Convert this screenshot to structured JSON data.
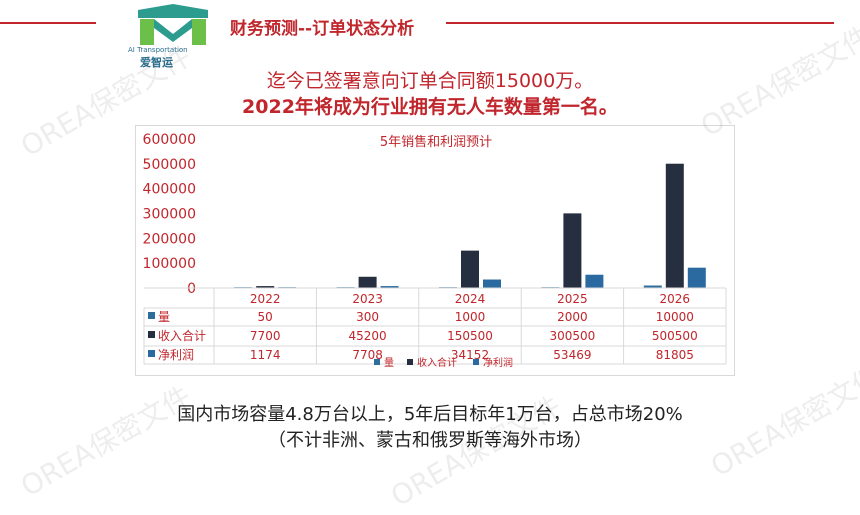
{
  "header": {
    "title": "财务预测--订单状态分析",
    "logo_tagline": "AI Transportation",
    "logo_brand": "爱智运"
  },
  "headline": {
    "line1": "迄今已签署意向订单合同额15000万。",
    "line2": "2022年将成为行业拥有无人车数量第一名。"
  },
  "chart_data": {
    "type": "bar",
    "title": "5年销售和利润预计",
    "categories": [
      "2022",
      "2023",
      "2024",
      "2025",
      "2026"
    ],
    "series": [
      {
        "name": "量",
        "values": [
          50,
          300,
          1000,
          2000,
          10000
        ],
        "color": "#2e6e9c"
      },
      {
        "name": "收入合计",
        "values": [
          7700,
          45200,
          150500,
          300500,
          500500
        ],
        "color": "#262f40"
      },
      {
        "name": "净利润",
        "values": [
          1174,
          7708,
          34152,
          53469,
          81805
        ],
        "color": "#2b6aa0"
      }
    ],
    "ylim": [
      0,
      600000
    ],
    "yticks": [
      "600000",
      "500000",
      "400000",
      "300000",
      "200000",
      "100000",
      "0"
    ],
    "data_table": true,
    "legend": "bottom"
  },
  "colors": {
    "accent": "#c0262c",
    "axis_text": "#c0262c"
  },
  "footer": {
    "line1": "国内市场容量4.8万台以上，5年后目标年1万台，占总市场20%",
    "line2": "（不计非洲、蒙古和俄罗斯等海外市场）"
  },
  "watermark": "OREA保密文件"
}
